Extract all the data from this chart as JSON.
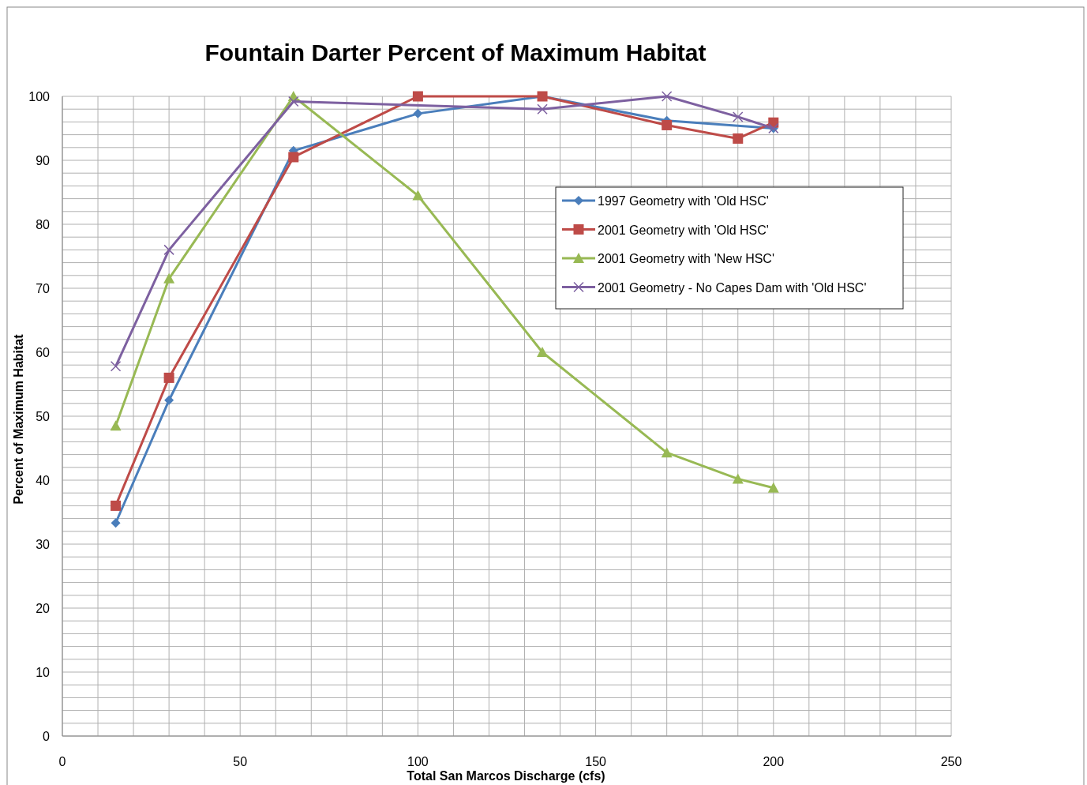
{
  "chart_data": {
    "type": "line",
    "title": "Fountain Darter Percent of Maximum Habitat",
    "xlabel": "Total San Marcos Discharge (cfs)",
    "ylabel": "Percent of Maximum Habitat",
    "x": [
      15,
      30,
      65,
      100,
      135,
      170,
      190,
      200
    ],
    "series": [
      {
        "name": "1997 Geometry with 'Old HSC'",
        "color": "#4a7ebb",
        "marker": "diamond",
        "x": [
          15,
          30,
          65,
          100,
          135,
          170,
          200
        ],
        "values": [
          33.3,
          52.5,
          91.5,
          97.3,
          100,
          96.2,
          95
        ]
      },
      {
        "name": "2001 Geometry with 'Old HSC'",
        "color": "#be4b48",
        "marker": "square",
        "values": [
          36,
          56,
          90.5,
          100,
          100,
          95.5,
          93.4,
          95.9
        ]
      },
      {
        "name": "2001 Geometry with 'New HSC'",
        "color": "#98b954",
        "marker": "triangle",
        "values": [
          48.5,
          71.5,
          100,
          84.5,
          60,
          44.3,
          40.2,
          38.8
        ]
      },
      {
        "name": "2001 Geometry - No Capes Dam with 'Old HSC'",
        "color": "#7d60a0",
        "marker": "cross",
        "x": [
          15,
          30,
          65,
          135,
          170,
          190,
          200
        ],
        "values": [
          57.8,
          76,
          99.2,
          98,
          100,
          96.8,
          95
        ]
      }
    ],
    "xlim": [
      0,
      250
    ],
    "ylim": [
      0,
      100
    ],
    "xticks": [
      0,
      {
        "value": 10,
        "label": null
      },
      {
        "value": 20,
        "label": null
      },
      {
        "value": 30,
        "label": null
      },
      {
        "value": 40,
        "label": null
      },
      50,
      {
        "value": 60,
        "label": null
      },
      {
        "value": 70,
        "label": null
      },
      {
        "value": 80,
        "label": null
      },
      {
        "value": 90,
        "label": null
      },
      100,
      {
        "value": 110,
        "label": null
      },
      {
        "value": 120,
        "label": null
      },
      {
        "value": 130,
        "label": null
      },
      {
        "value": 140,
        "label": null
      },
      150,
      {
        "value": 160,
        "label": null
      },
      {
        "value": 170,
        "label": null
      },
      {
        "value": 180,
        "label": null
      },
      {
        "value": 190,
        "label": null
      },
      200,
      {
        "value": 210,
        "label": null
      },
      {
        "value": 220,
        "label": null
      },
      {
        "value": 230,
        "label": null
      },
      {
        "value": 240,
        "label": null
      },
      250
    ],
    "yticks": [
      0,
      {
        "value": 2,
        "label": null
      },
      {
        "value": 4,
        "label": null
      },
      {
        "value": 6,
        "label": null
      },
      {
        "value": 8,
        "label": null
      },
      10,
      {
        "value": 12,
        "label": null
      },
      {
        "value": 14,
        "label": null
      },
      {
        "value": 16,
        "label": null
      },
      {
        "value": 18,
        "label": null
      },
      20,
      {
        "value": 22,
        "label": null
      },
      {
        "value": 24,
        "label": null
      },
      {
        "value": 26,
        "label": null
      },
      {
        "value": 28,
        "label": null
      },
      30,
      {
        "value": 32,
        "label": null
      },
      {
        "value": 34,
        "label": null
      },
      {
        "value": 36,
        "label": null
      },
      {
        "value": 38,
        "label": null
      },
      40,
      {
        "value": 42,
        "label": null
      },
      {
        "value": 44,
        "label": null
      },
      {
        "value": 46,
        "label": null
      },
      {
        "value": 48,
        "label": null
      },
      50,
      {
        "value": 52,
        "label": null
      },
      {
        "value": 54,
        "label": null
      },
      {
        "value": 56,
        "label": null
      },
      {
        "value": 58,
        "label": null
      },
      60,
      {
        "value": 62,
        "label": null
      },
      {
        "value": 64,
        "label": null
      },
      {
        "value": 66,
        "label": null
      },
      {
        "value": 68,
        "label": null
      },
      70,
      {
        "value": 72,
        "label": null
      },
      {
        "value": 74,
        "label": null
      },
      {
        "value": 76,
        "label": null
      },
      {
        "value": 78,
        "label": null
      },
      80,
      {
        "value": 82,
        "label": null
      },
      {
        "value": 84,
        "label": null
      },
      {
        "value": 86,
        "label": null
      },
      {
        "value": 88,
        "label": null
      },
      90,
      {
        "value": 92,
        "label": null
      },
      {
        "value": 94,
        "label": null
      },
      {
        "value": 96,
        "label": null
      },
      {
        "value": 98,
        "label": null
      },
      100
    ],
    "grid": true,
    "legend": "right",
    "line_style": "solid"
  }
}
